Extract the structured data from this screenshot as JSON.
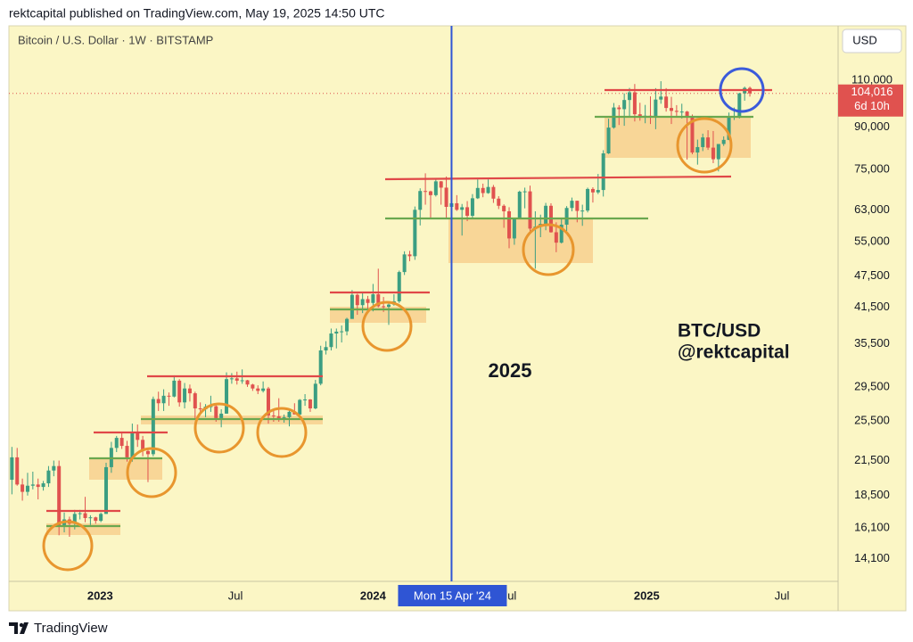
{
  "header": "rektcapital published on TradingView.com, May 19, 2025 14:50 UTC",
  "footer": "TradingView",
  "chart_data": {
    "type": "candlestick",
    "title": "Bitcoin / U.S. Dollar · 1W · BITSTAMP",
    "currency": "USD",
    "annotations": [
      "2025",
      "BTC/USD",
      "@rektcapital"
    ],
    "log_scale": true,
    "grid": false,
    "up_color": "#3b9e82",
    "down_color": "#e0524f",
    "xlim": [
      "2022-09-01",
      "2025-09-14"
    ],
    "xticks": [
      {
        "value": "2023-01-01",
        "label": "2023"
      },
      {
        "value": "2023-07-01",
        "label": "Jul"
      },
      {
        "value": "2024-01-01",
        "label": "2024"
      },
      {
        "value": "2024-07-01",
        "label": "Jul"
      },
      {
        "value": "2025-01-01",
        "label": "2025"
      },
      {
        "value": "2025-07-01",
        "label": "Jul"
      }
    ],
    "ylim": [
      12800,
      139000
    ],
    "yticks": [
      {
        "value": 14100,
        "label": "14,100"
      },
      {
        "value": 16100,
        "label": "16,100"
      },
      {
        "value": 18500,
        "label": "18,500"
      },
      {
        "value": 21500,
        "label": "21,500"
      },
      {
        "value": 25500,
        "label": "25,500"
      },
      {
        "value": 29500,
        "label": "29,500"
      },
      {
        "value": 35500,
        "label": "35,500"
      },
      {
        "value": 41500,
        "label": "41,500"
      },
      {
        "value": 47500,
        "label": "47,500"
      },
      {
        "value": 55000,
        "label": "55,000"
      },
      {
        "value": 63000,
        "label": "63,000"
      },
      {
        "value": 75000,
        "label": "75,000"
      },
      {
        "value": 90000,
        "label": "90,000"
      },
      {
        "value": 110000,
        "label": "110,000"
      }
    ],
    "last_price": {
      "value": 104016,
      "label": "104,016"
    },
    "countdown": "6d 10h",
    "crosshair": {
      "x": "2024-04-15",
      "label": "Mon 15 Apr '24"
    },
    "x": [
      "2022-09-05",
      "2022-09-12",
      "2022-09-19",
      "2022-09-26",
      "2022-10-03",
      "2022-10-10",
      "2022-10-17",
      "2022-10-24",
      "2022-10-31",
      "2022-11-07",
      "2022-11-14",
      "2022-11-21",
      "2022-11-28",
      "2022-12-05",
      "2022-12-12",
      "2022-12-19",
      "2022-12-26",
      "2023-01-02",
      "2023-01-09",
      "2023-01-16",
      "2023-01-23",
      "2023-01-30",
      "2023-02-06",
      "2023-02-13",
      "2023-02-20",
      "2023-02-27",
      "2023-03-06",
      "2023-03-13",
      "2023-03-20",
      "2023-03-27",
      "2023-04-03",
      "2023-04-10",
      "2023-04-17",
      "2023-04-24",
      "2023-05-01",
      "2023-05-08",
      "2023-05-15",
      "2023-05-22",
      "2023-05-29",
      "2023-06-05",
      "2023-06-12",
      "2023-06-19",
      "2023-06-26",
      "2023-07-03",
      "2023-07-10",
      "2023-07-17",
      "2023-07-24",
      "2023-07-31",
      "2023-08-07",
      "2023-08-14",
      "2023-08-21",
      "2023-08-28",
      "2023-09-04",
      "2023-09-11",
      "2023-09-18",
      "2023-09-25",
      "2023-10-02",
      "2023-10-09",
      "2023-10-16",
      "2023-10-23",
      "2023-10-30",
      "2023-11-06",
      "2023-11-13",
      "2023-11-20",
      "2023-11-27",
      "2023-12-04",
      "2023-12-11",
      "2023-12-18",
      "2023-12-25",
      "2024-01-01",
      "2024-01-08",
      "2024-01-15",
      "2024-01-22",
      "2024-01-29",
      "2024-02-05",
      "2024-02-12",
      "2024-02-19",
      "2024-02-26",
      "2024-03-04",
      "2024-03-11",
      "2024-03-18",
      "2024-03-25",
      "2024-04-01",
      "2024-04-08",
      "2024-04-15",
      "2024-04-22",
      "2024-04-29",
      "2024-05-06",
      "2024-05-13",
      "2024-05-20",
      "2024-05-27",
      "2024-06-03",
      "2024-06-10",
      "2024-06-17",
      "2024-06-24",
      "2024-07-01",
      "2024-07-08",
      "2024-07-15",
      "2024-07-22",
      "2024-07-29",
      "2024-08-05",
      "2024-08-12",
      "2024-08-19",
      "2024-08-26",
      "2024-09-02",
      "2024-09-09",
      "2024-09-16",
      "2024-09-23",
      "2024-09-30",
      "2024-10-07",
      "2024-10-14",
      "2024-10-21",
      "2024-10-28",
      "2024-11-04",
      "2024-11-11",
      "2024-11-18",
      "2024-11-25",
      "2024-12-02",
      "2024-12-09",
      "2024-12-16",
      "2024-12-23",
      "2024-12-30",
      "2025-01-06",
      "2025-01-13",
      "2025-01-20",
      "2025-01-27",
      "2025-02-03",
      "2025-02-10",
      "2025-02-17",
      "2025-02-24",
      "2025-03-03",
      "2025-03-10",
      "2025-03-17",
      "2025-03-24",
      "2025-03-31",
      "2025-04-07",
      "2025-04-14",
      "2025-04-21",
      "2025-04-28",
      "2025-05-05",
      "2025-05-12",
      "2025-05-19"
    ],
    "ohlc": [
      [
        19800,
        22800,
        18600,
        21800
      ],
      [
        21800,
        22700,
        19300,
        19400
      ],
      [
        19400,
        19900,
        18100,
        18800
      ],
      [
        18800,
        20400,
        18500,
        19300
      ],
      [
        19300,
        20500,
        19000,
        19400
      ],
      [
        19400,
        19900,
        18200,
        19200
      ],
      [
        19200,
        19700,
        18900,
        19500
      ],
      [
        19500,
        21000,
        19200,
        20600
      ],
      [
        20600,
        21500,
        20100,
        21000
      ],
      [
        21000,
        21500,
        15600,
        16300
      ],
      [
        16300,
        17200,
        15800,
        16700
      ],
      [
        16700,
        16900,
        15500,
        16400
      ],
      [
        16400,
        17400,
        16000,
        17100
      ],
      [
        17100,
        17400,
        16700,
        17150
      ],
      [
        17150,
        18400,
        16500,
        16800
      ],
      [
        16800,
        17000,
        16300,
        16850
      ],
      [
        16850,
        16900,
        16400,
        16600
      ],
      [
        16600,
        17200,
        16500,
        17100
      ],
      [
        17100,
        21300,
        17100,
        20900
      ],
      [
        20900,
        23300,
        20400,
        22700
      ],
      [
        22700,
        23900,
        22300,
        23700
      ],
      [
        23700,
        24300,
        22600,
        22900
      ],
      [
        22900,
        23400,
        21400,
        21800
      ],
      [
        21800,
        25200,
        21400,
        24300
      ],
      [
        24300,
        25100,
        22800,
        23500
      ],
      [
        23500,
        23900,
        21900,
        22400
      ],
      [
        22400,
        22600,
        19600,
        22100
      ],
      [
        22100,
        28300,
        21900,
        28000
      ],
      [
        28000,
        28900,
        26600,
        27500
      ],
      [
        27500,
        29200,
        26600,
        28400
      ],
      [
        28400,
        28800,
        27200,
        28300
      ],
      [
        28300,
        31000,
        28200,
        30300
      ],
      [
        30300,
        30500,
        27100,
        27600
      ],
      [
        27600,
        30000,
        26900,
        29300
      ],
      [
        29300,
        29800,
        27700,
        28700
      ],
      [
        28700,
        28900,
        25800,
        26900
      ],
      [
        26900,
        27600,
        26300,
        26800
      ],
      [
        26800,
        27400,
        25900,
        27100
      ],
      [
        27100,
        28400,
        26500,
        27150
      ],
      [
        27150,
        27300,
        25400,
        25800
      ],
      [
        25800,
        26800,
        24800,
        26300
      ],
      [
        26300,
        31400,
        26300,
        30500
      ],
      [
        30500,
        31300,
        29900,
        30600
      ],
      [
        30600,
        31500,
        29800,
        30300
      ],
      [
        30300,
        31800,
        29900,
        30350
      ],
      [
        30350,
        30400,
        29500,
        29800
      ],
      [
        29800,
        29900,
        29000,
        29300
      ],
      [
        29300,
        29700,
        28600,
        29000
      ],
      [
        29000,
        30200,
        28800,
        29300
      ],
      [
        29300,
        29500,
        25200,
        26100
      ],
      [
        26100,
        26800,
        25400,
        26000
      ],
      [
        26000,
        28100,
        25400,
        25800
      ],
      [
        25800,
        26200,
        25300,
        25900
      ],
      [
        25900,
        26900,
        24900,
        26500
      ],
      [
        26500,
        27500,
        26400,
        26200
      ],
      [
        26200,
        28000,
        26000,
        27900
      ],
      [
        27900,
        28600,
        27200,
        27950
      ],
      [
        27950,
        28000,
        26500,
        26900
      ],
      [
        26900,
        30400,
        26800,
        29900
      ],
      [
        29900,
        35200,
        29700,
        34500
      ],
      [
        34500,
        35900,
        33900,
        35000
      ],
      [
        35000,
        37900,
        34500,
        37100
      ],
      [
        37100,
        37900,
        34800,
        37400
      ],
      [
        37400,
        38400,
        35700,
        37450
      ],
      [
        37450,
        39700,
        36800,
        39500
      ],
      [
        39500,
        44700,
        39500,
        43800
      ],
      [
        43800,
        44000,
        40200,
        41900
      ],
      [
        41900,
        44400,
        40500,
        43000
      ],
      [
        43000,
        43600,
        41300,
        42300
      ],
      [
        42300,
        45900,
        40800,
        43900
      ],
      [
        43900,
        49000,
        41500,
        41700
      ],
      [
        41700,
        43400,
        40700,
        41600
      ],
      [
        41600,
        42200,
        38500,
        42000
      ],
      [
        42000,
        43900,
        41800,
        42600
      ],
      [
        42600,
        48600,
        42300,
        48300
      ],
      [
        48300,
        52800,
        47700,
        52100
      ],
      [
        52100,
        52900,
        50600,
        51700
      ],
      [
        51700,
        64000,
        50900,
        63100
      ],
      [
        63100,
        69200,
        59000,
        68400
      ],
      [
        68400,
        73800,
        64500,
        68300
      ],
      [
        68300,
        68500,
        60800,
        67200
      ],
      [
        67200,
        71800,
        66800,
        71300
      ],
      [
        71300,
        71400,
        64500,
        69400
      ],
      [
        69400,
        72800,
        60700,
        63900
      ],
      [
        63900,
        66900,
        59600,
        64900
      ],
      [
        64900,
        67200,
        62800,
        63100
      ],
      [
        63100,
        64700,
        56500,
        63800
      ],
      [
        63800,
        65500,
        60100,
        61500
      ],
      [
        61500,
        67500,
        60600,
        66300
      ],
      [
        66300,
        71900,
        66100,
        69300
      ],
      [
        69300,
        70600,
        66600,
        67800
      ],
      [
        67800,
        71900,
        67600,
        69600
      ],
      [
        69600,
        70200,
        65000,
        66200
      ],
      [
        66200,
        66900,
        63300,
        64200
      ],
      [
        64200,
        64600,
        58400,
        62700
      ],
      [
        62700,
        63800,
        53500,
        55800
      ],
      [
        55800,
        61000,
        54300,
        60800
      ],
      [
        60800,
        68500,
        60700,
        68200
      ],
      [
        68200,
        69400,
        63500,
        68300
      ],
      [
        68300,
        70000,
        57200,
        58200
      ],
      [
        58200,
        62700,
        49000,
        58700
      ],
      [
        58700,
        61800,
        56100,
        59400
      ],
      [
        59400,
        65000,
        57800,
        64200
      ],
      [
        64200,
        64900,
        57200,
        57300
      ],
      [
        57300,
        59800,
        52600,
        54800
      ],
      [
        54800,
        60700,
        54600,
        59200
      ],
      [
        59200,
        64100,
        57600,
        63600
      ],
      [
        63600,
        66500,
        62700,
        65600
      ],
      [
        65600,
        65600,
        59800,
        62800
      ],
      [
        62800,
        64500,
        58900,
        62900
      ],
      [
        62900,
        69400,
        62400,
        69000
      ],
      [
        69000,
        69500,
        65100,
        68000
      ],
      [
        68000,
        73600,
        67500,
        68700
      ],
      [
        68700,
        81500,
        66800,
        80400
      ],
      [
        80400,
        93300,
        80200,
        89800
      ],
      [
        89800,
        99800,
        89400,
        97900
      ],
      [
        97900,
        98900,
        90800,
        97200
      ],
      [
        97200,
        104000,
        90500,
        101100
      ],
      [
        101100,
        106500,
        94200,
        104500
      ],
      [
        104500,
        108300,
        92200,
        95100
      ],
      [
        95100,
        99900,
        92500,
        93700
      ],
      [
        93700,
        99000,
        91500,
        94500
      ],
      [
        94500,
        102700,
        91200,
        94400
      ],
      [
        94400,
        106400,
        89200,
        101300
      ],
      [
        101300,
        109600,
        99500,
        102600
      ],
      [
        102600,
        106400,
        96200,
        97700
      ],
      [
        97700,
        102500,
        91200,
        96500
      ],
      [
        96500,
        98900,
        94000,
        96100
      ],
      [
        96100,
        99500,
        93400,
        96200
      ],
      [
        96200,
        96500,
        78300,
        94300
      ],
      [
        94300,
        95000,
        80100,
        80700
      ],
      [
        80700,
        85300,
        76600,
        82600
      ],
      [
        82600,
        87500,
        81200,
        86100
      ],
      [
        86100,
        88800,
        81600,
        82400
      ],
      [
        82400,
        88500,
        77100,
        78400
      ],
      [
        78400,
        83600,
        74400,
        83700
      ],
      [
        83700,
        86500,
        83000,
        85200
      ],
      [
        85200,
        95800,
        85100,
        93700
      ],
      [
        93700,
        97900,
        92800,
        94300
      ],
      [
        94300,
        104300,
        93400,
        104000
      ],
      [
        104000,
        107100,
        100800,
        106500
      ],
      [
        106500,
        107100,
        102600,
        104016
      ]
    ]
  }
}
